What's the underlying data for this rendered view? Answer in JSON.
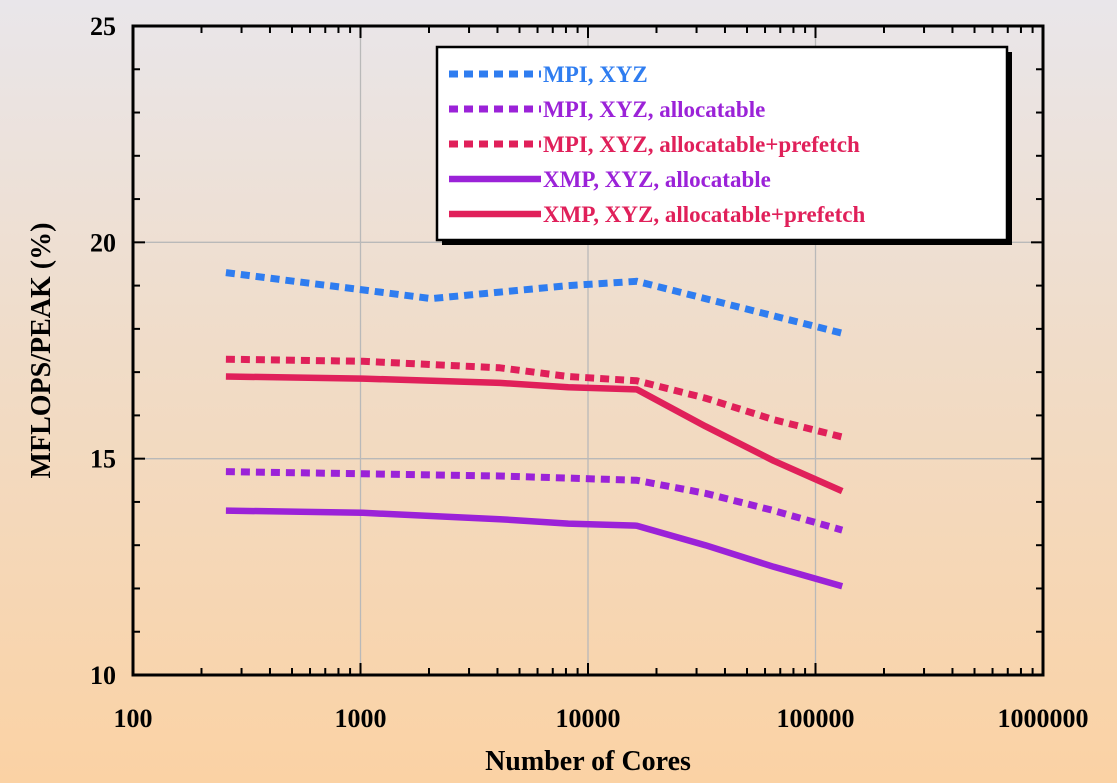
{
  "chart_data": {
    "type": "line",
    "title": "",
    "xlabel": "Number of Cores",
    "ylabel": "MFLOPS/PEAK (%)",
    "x_scale": "log",
    "xlim": [
      100,
      1000000
    ],
    "ylim": [
      10,
      25
    ],
    "x_ticks": [
      100,
      1000,
      10000,
      100000,
      1000000
    ],
    "x_tick_labels": [
      "100",
      "1000",
      "10000",
      "100000",
      "1000000"
    ],
    "y_ticks": [
      10,
      15,
      20,
      25
    ],
    "y_tick_labels": [
      "10",
      "15",
      "20",
      "25"
    ],
    "grid": true,
    "legend_position": "top-right",
    "series": [
      {
        "name": "MPI, XYZ",
        "color": "#2f7df0",
        "style": "dotted",
        "points": [
          [
            256,
            19.3
          ],
          [
            512,
            19.1
          ],
          [
            1024,
            18.9
          ],
          [
            2048,
            18.7
          ],
          [
            4096,
            18.85
          ],
          [
            8192,
            19.0
          ],
          [
            16384,
            19.1
          ],
          [
            32768,
            18.7
          ],
          [
            65536,
            18.3
          ],
          [
            131072,
            17.9
          ]
        ]
      },
      {
        "name": "MPI, XYZ, allocatable",
        "color": "#9b22d8",
        "style": "dotted",
        "points": [
          [
            256,
            14.7
          ],
          [
            1024,
            14.65
          ],
          [
            4096,
            14.6
          ],
          [
            8192,
            14.55
          ],
          [
            16384,
            14.5
          ],
          [
            32768,
            14.2
          ],
          [
            65536,
            13.8
          ],
          [
            131072,
            13.35
          ]
        ]
      },
      {
        "name": "MPI, XYZ, allocatable+prefetch",
        "color": "#e0205a",
        "style": "dotted",
        "points": [
          [
            256,
            17.3
          ],
          [
            1024,
            17.25
          ],
          [
            4096,
            17.1
          ],
          [
            8192,
            16.9
          ],
          [
            16384,
            16.8
          ],
          [
            32768,
            16.4
          ],
          [
            65536,
            15.9
          ],
          [
            131072,
            15.5
          ]
        ]
      },
      {
        "name": "XMP, XYZ, allocatable",
        "color": "#9b22d8",
        "style": "solid",
        "points": [
          [
            256,
            13.8
          ],
          [
            1024,
            13.75
          ],
          [
            4096,
            13.6
          ],
          [
            8192,
            13.5
          ],
          [
            16384,
            13.45
          ],
          [
            32768,
            13.0
          ],
          [
            65536,
            12.5
          ],
          [
            131072,
            12.05
          ]
        ]
      },
      {
        "name": "XMP, XYZ, allocatable+prefetch",
        "color": "#e0205a",
        "style": "solid",
        "points": [
          [
            256,
            16.9
          ],
          [
            1024,
            16.85
          ],
          [
            4096,
            16.75
          ],
          [
            8192,
            16.65
          ],
          [
            16384,
            16.6
          ],
          [
            32768,
            15.75
          ],
          [
            65536,
            14.95
          ],
          [
            131072,
            14.25
          ]
        ]
      }
    ]
  }
}
